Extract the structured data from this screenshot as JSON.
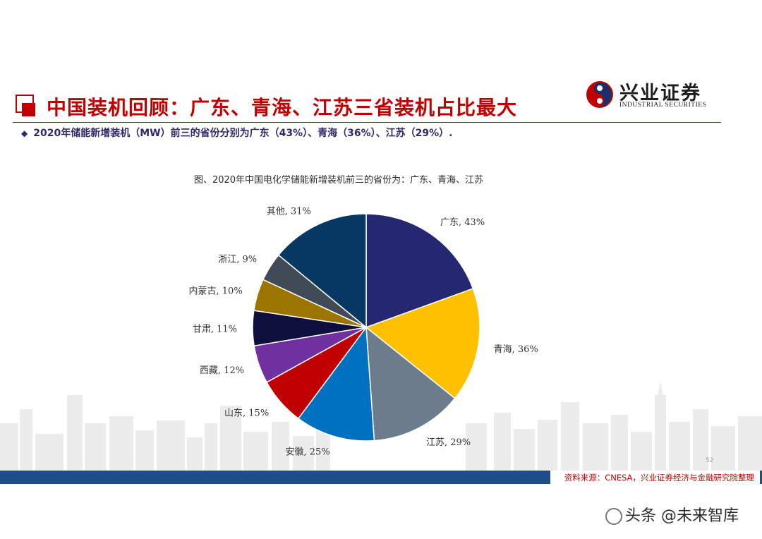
{
  "header": {
    "title": "中国装机回顾：广东、青海、江苏三省装机占比最大",
    "bullet": "2020年储能新增装机（MW）前三的省份分别为广东（43%）、青海（36%）、江苏（29%）."
  },
  "logo": {
    "name_cn": "兴业证券",
    "name_en": "INDUSTRIAL SECURITIES"
  },
  "colors": {
    "title": "#c00000",
    "footer_bar": "#1d4e87",
    "bullet_text": "#2e2a6b"
  },
  "chart_data": {
    "type": "pie",
    "title": "图、2020年中国电化学储能新增装机前三的省份为：广东、青海、江苏",
    "slices": [
      {
        "label": "广东, 43%",
        "value": 43,
        "color": "#252771"
      },
      {
        "label": "青海, 36%",
        "value": 36,
        "color": "#ffc000"
      },
      {
        "label": "江苏, 29%",
        "value": 29,
        "color": "#6d7c8d"
      },
      {
        "label": "安徽, 25%",
        "value": 25,
        "color": "#0070c0"
      },
      {
        "label": "山东, 15%",
        "value": 15,
        "color": "#c00000"
      },
      {
        "label": "西藏, 12%",
        "value": 12,
        "color": "#7030a0"
      },
      {
        "label": "甘肃, 11%",
        "value": 11,
        "color": "#0f0f3d"
      },
      {
        "label": "内蒙古, 10%",
        "value": 10,
        "color": "#9c7500"
      },
      {
        "label": "浙江, 9%",
        "value": 9,
        "color": "#404b55"
      },
      {
        "label": "其他, 31%",
        "value": 31,
        "color": "#073763"
      }
    ],
    "start": "12 o'clock",
    "direction": "clockwise",
    "legend": "none (labels beside slices)"
  },
  "footer": {
    "page_number": "52",
    "source": "资料来源：CNESA，兴业证券经济与金融研究院整理"
  },
  "watermark": {
    "text": "头条 @未来智库"
  }
}
